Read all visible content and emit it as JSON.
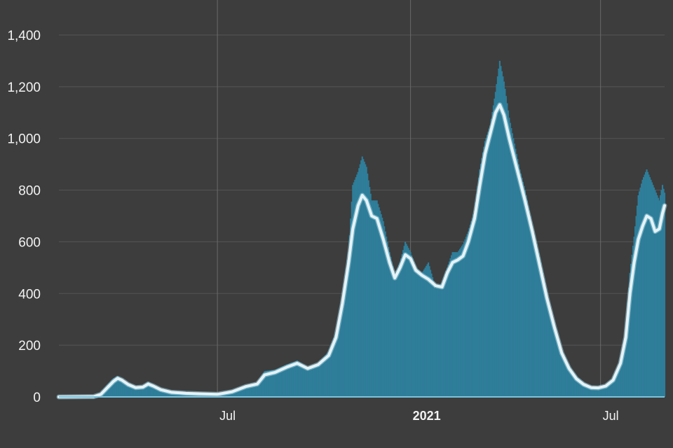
{
  "chart_data": {
    "type": "bar",
    "title": "",
    "xlabel": "",
    "ylabel": "",
    "ylim": [
      0,
      1450
    ],
    "xlim": [
      "2020-02-01",
      "2021-08-31"
    ],
    "grid": true,
    "colors": {
      "background": "#3d3d3d",
      "bars": "#2e7d99",
      "line": "#e6f3f7",
      "line_halo": "#9fd3e3",
      "grid": "#555555",
      "axis_line": "#7cc3dc",
      "tick_text": "#f2f2f2"
    },
    "y_ticks": [
      {
        "value": 0,
        "label": "0"
      },
      {
        "value": 200,
        "label": "200"
      },
      {
        "value": 400,
        "label": "400"
      },
      {
        "value": 600,
        "label": "600"
      },
      {
        "value": 800,
        "label": "800"
      },
      {
        "value": 1000,
        "label": "1,000"
      },
      {
        "value": 1200,
        "label": "1,200"
      },
      {
        "value": 1400,
        "label": "1,400"
      }
    ],
    "x_ticks": [
      {
        "date": "2020-07-01",
        "label": "Jul",
        "bold": false
      },
      {
        "date": "2021-01-01",
        "label": "2021",
        "bold": true
      },
      {
        "date": "2021-07-01",
        "label": "Jul",
        "bold": false
      }
    ],
    "series": [
      {
        "type": "bar",
        "points": [
          [
            "2020-02-01",
            0
          ],
          [
            "2020-03-05",
            2
          ],
          [
            "2020-03-12",
            15
          ],
          [
            "2020-03-18",
            45
          ],
          [
            "2020-03-24",
            72
          ],
          [
            "2020-03-28",
            80
          ],
          [
            "2020-04-01",
            70
          ],
          [
            "2020-04-07",
            50
          ],
          [
            "2020-04-14",
            38
          ],
          [
            "2020-04-21",
            42
          ],
          [
            "2020-04-26",
            58
          ],
          [
            "2020-05-01",
            45
          ],
          [
            "2020-05-08",
            30
          ],
          [
            "2020-05-18",
            20
          ],
          [
            "2020-06-01",
            15
          ],
          [
            "2020-06-15",
            14
          ],
          [
            "2020-07-01",
            12
          ],
          [
            "2020-07-15",
            25
          ],
          [
            "2020-07-28",
            45
          ],
          [
            "2020-08-08",
            55
          ],
          [
            "2020-08-15",
            100
          ],
          [
            "2020-08-25",
            105
          ],
          [
            "2020-09-05",
            125
          ],
          [
            "2020-09-15",
            140
          ],
          [
            "2020-09-25",
            115
          ],
          [
            "2020-10-05",
            130
          ],
          [
            "2020-10-15",
            175
          ],
          [
            "2020-10-22",
            250
          ],
          [
            "2020-10-28",
            380
          ],
          [
            "2020-11-03",
            560
          ],
          [
            "2020-11-07",
            820
          ],
          [
            "2020-11-12",
            870
          ],
          [
            "2020-11-16",
            930
          ],
          [
            "2020-11-20",
            890
          ],
          [
            "2020-11-25",
            760
          ],
          [
            "2020-11-30",
            760
          ],
          [
            "2020-12-06",
            680
          ],
          [
            "2020-12-12",
            560
          ],
          [
            "2020-12-17",
            470
          ],
          [
            "2020-12-22",
            520
          ],
          [
            "2020-12-27",
            600
          ],
          [
            "2021-01-01",
            560
          ],
          [
            "2021-01-06",
            500
          ],
          [
            "2021-01-12",
            480
          ],
          [
            "2021-01-18",
            520
          ],
          [
            "2021-01-25",
            420
          ],
          [
            "2021-01-31",
            440
          ],
          [
            "2021-02-05",
            500
          ],
          [
            "2021-02-10",
            560
          ],
          [
            "2021-02-15",
            560
          ],
          [
            "2021-02-20",
            590
          ],
          [
            "2021-02-25",
            640
          ],
          [
            "2021-03-03",
            720
          ],
          [
            "2021-03-08",
            880
          ],
          [
            "2021-03-13",
            990
          ],
          [
            "2021-03-18",
            1050
          ],
          [
            "2021-03-23",
            1180
          ],
          [
            "2021-03-27",
            1300
          ],
          [
            "2021-03-31",
            1220
          ],
          [
            "2021-04-05",
            1080
          ],
          [
            "2021-04-10",
            980
          ],
          [
            "2021-04-15",
            880
          ],
          [
            "2021-04-20",
            800
          ],
          [
            "2021-04-27",
            660
          ],
          [
            "2021-05-04",
            540
          ],
          [
            "2021-05-11",
            400
          ],
          [
            "2021-05-18",
            280
          ],
          [
            "2021-05-25",
            180
          ],
          [
            "2021-06-01",
            120
          ],
          [
            "2021-06-08",
            80
          ],
          [
            "2021-06-15",
            55
          ],
          [
            "2021-06-22",
            40
          ],
          [
            "2021-06-29",
            38
          ],
          [
            "2021-07-06",
            45
          ],
          [
            "2021-07-13",
            70
          ],
          [
            "2021-07-20",
            140
          ],
          [
            "2021-07-25",
            250
          ],
          [
            "2021-07-29",
            480
          ],
          [
            "2021-08-02",
            620
          ],
          [
            "2021-08-06",
            780
          ],
          [
            "2021-08-10",
            840
          ],
          [
            "2021-08-14",
            880
          ],
          [
            "2021-08-18",
            840
          ],
          [
            "2021-08-22",
            800
          ],
          [
            "2021-08-26",
            760
          ],
          [
            "2021-08-29",
            820
          ],
          [
            "2021-08-31",
            790
          ]
        ]
      },
      {
        "type": "line",
        "points": [
          [
            "2020-02-01",
            0
          ],
          [
            "2020-03-05",
            1
          ],
          [
            "2020-03-12",
            10
          ],
          [
            "2020-03-18",
            35
          ],
          [
            "2020-03-24",
            60
          ],
          [
            "2020-03-28",
            72
          ],
          [
            "2020-04-01",
            65
          ],
          [
            "2020-04-07",
            48
          ],
          [
            "2020-04-14",
            36
          ],
          [
            "2020-04-21",
            38
          ],
          [
            "2020-04-26",
            50
          ],
          [
            "2020-05-01",
            42
          ],
          [
            "2020-05-08",
            28
          ],
          [
            "2020-05-18",
            18
          ],
          [
            "2020-06-01",
            14
          ],
          [
            "2020-06-15",
            12
          ],
          [
            "2020-07-01",
            10
          ],
          [
            "2020-07-15",
            20
          ],
          [
            "2020-07-28",
            40
          ],
          [
            "2020-08-08",
            50
          ],
          [
            "2020-08-15",
            85
          ],
          [
            "2020-08-25",
            95
          ],
          [
            "2020-09-05",
            115
          ],
          [
            "2020-09-15",
            130
          ],
          [
            "2020-09-25",
            110
          ],
          [
            "2020-10-05",
            125
          ],
          [
            "2020-10-15",
            160
          ],
          [
            "2020-10-22",
            230
          ],
          [
            "2020-10-28",
            360
          ],
          [
            "2020-11-03",
            520
          ],
          [
            "2020-11-07",
            650
          ],
          [
            "2020-11-12",
            740
          ],
          [
            "2020-11-16",
            780
          ],
          [
            "2020-11-20",
            760
          ],
          [
            "2020-11-25",
            700
          ],
          [
            "2020-11-30",
            690
          ],
          [
            "2020-12-06",
            610
          ],
          [
            "2020-12-12",
            520
          ],
          [
            "2020-12-17",
            460
          ],
          [
            "2020-12-22",
            500
          ],
          [
            "2020-12-27",
            550
          ],
          [
            "2021-01-01",
            535
          ],
          [
            "2021-01-06",
            490
          ],
          [
            "2021-01-12",
            470
          ],
          [
            "2021-01-18",
            455
          ],
          [
            "2021-01-25",
            430
          ],
          [
            "2021-01-31",
            425
          ],
          [
            "2021-02-05",
            480
          ],
          [
            "2021-02-10",
            520
          ],
          [
            "2021-02-15",
            530
          ],
          [
            "2021-02-20",
            545
          ],
          [
            "2021-02-25",
            600
          ],
          [
            "2021-03-03",
            690
          ],
          [
            "2021-03-08",
            820
          ],
          [
            "2021-03-13",
            940
          ],
          [
            "2021-03-18",
            1020
          ],
          [
            "2021-03-23",
            1100
          ],
          [
            "2021-03-27",
            1130
          ],
          [
            "2021-03-31",
            1090
          ],
          [
            "2021-04-05",
            1000
          ],
          [
            "2021-04-10",
            920
          ],
          [
            "2021-04-15",
            840
          ],
          [
            "2021-04-20",
            760
          ],
          [
            "2021-04-27",
            640
          ],
          [
            "2021-05-04",
            510
          ],
          [
            "2021-05-11",
            380
          ],
          [
            "2021-05-18",
            270
          ],
          [
            "2021-05-25",
            170
          ],
          [
            "2021-06-01",
            110
          ],
          [
            "2021-06-08",
            70
          ],
          [
            "2021-06-15",
            48
          ],
          [
            "2021-06-22",
            36
          ],
          [
            "2021-06-29",
            35
          ],
          [
            "2021-07-06",
            42
          ],
          [
            "2021-07-13",
            65
          ],
          [
            "2021-07-20",
            130
          ],
          [
            "2021-07-25",
            230
          ],
          [
            "2021-07-29",
            400
          ],
          [
            "2021-08-02",
            520
          ],
          [
            "2021-08-06",
            610
          ],
          [
            "2021-08-10",
            660
          ],
          [
            "2021-08-14",
            700
          ],
          [
            "2021-08-18",
            690
          ],
          [
            "2021-08-22",
            640
          ],
          [
            "2021-08-26",
            650
          ],
          [
            "2021-08-29",
            710
          ],
          [
            "2021-08-31",
            740
          ]
        ]
      }
    ]
  }
}
